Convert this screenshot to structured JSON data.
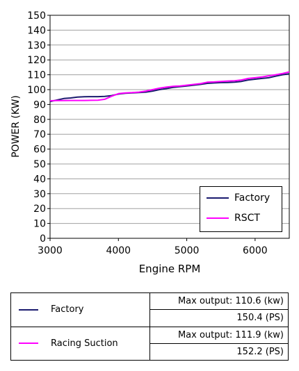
{
  "chart_data": {
    "type": "line",
    "ylabel": "POWER (KW)",
    "xlabel": "Engine RPM",
    "xlim": [
      3000,
      6500
    ],
    "ylim": [
      0,
      150
    ],
    "xticks": [
      3000,
      4000,
      5000,
      6000
    ],
    "yticks": [
      0,
      10,
      20,
      30,
      40,
      50,
      60,
      70,
      80,
      90,
      100,
      110,
      120,
      130,
      140,
      150
    ],
    "grid": "horizontal",
    "legend_position": "bottom-right",
    "series": [
      {
        "name": "Factory",
        "color": "#1a1a6e",
        "x": [
          3000,
          3100,
          3200,
          3300,
          3400,
          3500,
          3600,
          3700,
          3800,
          3900,
          4000,
          4100,
          4200,
          4300,
          4400,
          4500,
          4600,
          4700,
          4800,
          4900,
          5000,
          5100,
          5200,
          5300,
          5400,
          5500,
          5600,
          5700,
          5800,
          5900,
          6000,
          6100,
          6200,
          6300,
          6400,
          6500
        ],
        "y": [
          92.0,
          93.0,
          94.0,
          94.4,
          95.0,
          95.2,
          95.3,
          95.3,
          95.4,
          96.0,
          97.0,
          97.5,
          97.8,
          98.0,
          98.3,
          99.0,
          100.0,
          100.7,
          101.5,
          102.0,
          102.5,
          103.0,
          103.5,
          104.2,
          104.5,
          104.7,
          104.8,
          105.0,
          105.5,
          106.5,
          107.0,
          107.5,
          108.0,
          109.0,
          110.0,
          110.6
        ]
      },
      {
        "name": "RSCT",
        "color": "#ff00ff",
        "x": [
          3000,
          3100,
          3200,
          3300,
          3400,
          3500,
          3600,
          3700,
          3800,
          3900,
          4000,
          4100,
          4200,
          4300,
          4400,
          4500,
          4600,
          4700,
          4800,
          4900,
          5000,
          5100,
          5200,
          5300,
          5400,
          5500,
          5600,
          5700,
          5800,
          5900,
          6000,
          6100,
          6200,
          6300,
          6400,
          6500
        ],
        "y": [
          92.5,
          92.6,
          92.6,
          92.7,
          92.7,
          92.7,
          92.8,
          92.9,
          93.5,
          95.5,
          97.3,
          97.8,
          98.0,
          98.3,
          99.0,
          100.0,
          101.0,
          101.7,
          102.2,
          102.5,
          103.0,
          103.5,
          104.0,
          105.0,
          105.2,
          105.5,
          105.8,
          106.0,
          106.5,
          107.5,
          108.0,
          108.5,
          109.3,
          110.0,
          110.8,
          111.9
        ]
      }
    ]
  },
  "spec_table": [
    {
      "name": "Factory",
      "color": "#1a1a6e",
      "max_output": "Max output: 110.6 (kw)",
      "ps": "150.4 (PS)"
    },
    {
      "name": "Racing Suction",
      "color": "#ff00ff",
      "max_output": "Max output: 111.9 (kw)",
      "ps": "152.2 (PS)"
    }
  ]
}
